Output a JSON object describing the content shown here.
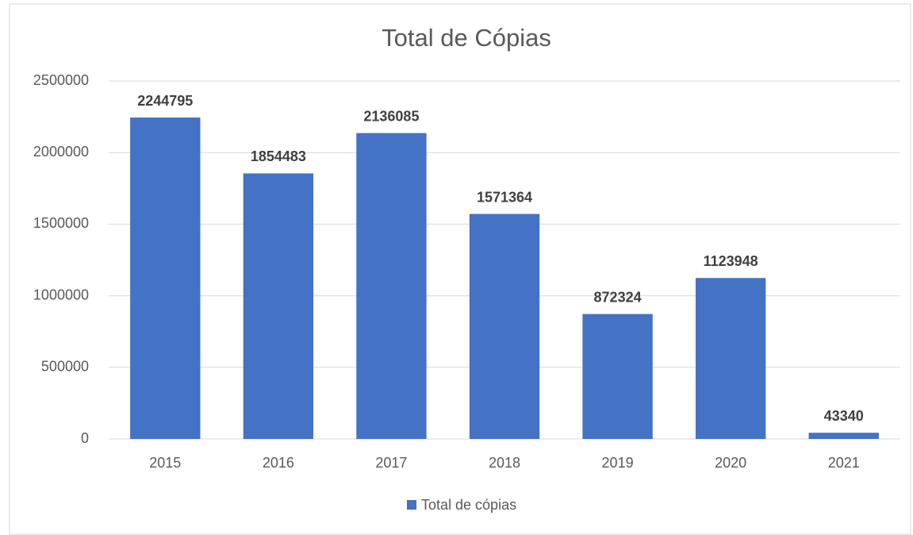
{
  "chart_data": {
    "type": "bar",
    "title": "Total de Cópias",
    "categories": [
      "2015",
      "2016",
      "2017",
      "2018",
      "2019",
      "2020",
      "2021"
    ],
    "series": [
      {
        "name": "Total de cópias",
        "color": "#4472c4",
        "values": [
          2244795,
          1854483,
          2136085,
          1571364,
          872324,
          1123948,
          43340
        ]
      }
    ],
    "ylim": [
      0,
      2500000
    ],
    "yticks": [
      0,
      500000,
      1000000,
      1500000,
      2000000,
      2500000
    ],
    "grid": true,
    "legend": "bottom"
  }
}
